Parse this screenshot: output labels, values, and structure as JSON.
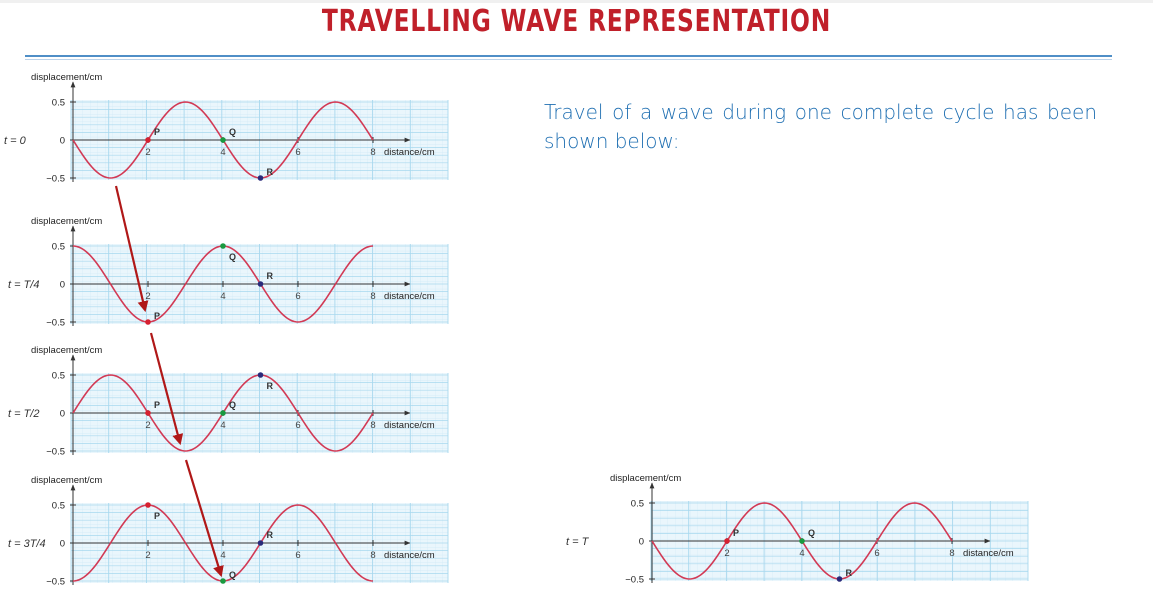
{
  "slide": {
    "title": "TRAVELLING WAVE REPRESENTATION",
    "description": "Travel of a wave during one complete cycle has been shown below:"
  },
  "colors": {
    "title": "#c0202a",
    "text": "#1f6fb2",
    "curve": "#d23a55",
    "grid": "#a8d8ee",
    "arrow": "#b01818",
    "point_P": "#d62030",
    "point_Q": "#1a9a40",
    "point_R": "#2a2a7a"
  },
  "chart_data": [
    {
      "type": "line",
      "time_label": "t = 0",
      "ylabel": "displacement/cm",
      "xlabel": "distance/cm",
      "xlim": [
        0,
        8
      ],
      "ylim": [
        -0.5,
        0.5
      ],
      "x_ticks": [
        2,
        4,
        6,
        8
      ],
      "y_ticks": [
        0.5,
        0,
        -0.5
      ],
      "y_tick_labels": [
        "0.5",
        "0",
        "−0.5"
      ],
      "wave": {
        "amplitude": 0.5,
        "wavelength": 4,
        "phase_cycles": 0
      },
      "points": [
        {
          "label": "P",
          "x": 2,
          "y": 0,
          "color": "#d62030"
        },
        {
          "label": "Q",
          "x": 4,
          "y": 0,
          "color": "#1a9a40"
        },
        {
          "label": "R",
          "x": 5,
          "y": -0.5,
          "color": "#2a2a7a"
        }
      ]
    },
    {
      "type": "line",
      "time_label": "t = T/4",
      "ylabel": "displacement/cm",
      "xlabel": "distance/cm",
      "xlim": [
        0,
        8
      ],
      "ylim": [
        -0.5,
        0.5
      ],
      "x_ticks": [
        2,
        4,
        6,
        8
      ],
      "y_ticks": [
        0.5,
        0,
        -0.5
      ],
      "y_tick_labels": [
        "0.5",
        "0",
        "−0.5"
      ],
      "wave": {
        "amplitude": 0.5,
        "wavelength": 4,
        "phase_cycles": 0.25
      },
      "points": [
        {
          "label": "P",
          "x": 2,
          "y": -0.5,
          "color": "#d62030"
        },
        {
          "label": "Q",
          "x": 4,
          "y": 0.5,
          "color": "#1a9a40"
        },
        {
          "label": "R",
          "x": 5,
          "y": 0,
          "color": "#2a2a7a"
        }
      ]
    },
    {
      "type": "line",
      "time_label": "t = T/2",
      "ylabel": "displacement/cm",
      "xlabel": "distance/cm",
      "xlim": [
        0,
        8
      ],
      "ylim": [
        -0.5,
        0.5
      ],
      "x_ticks": [
        2,
        4,
        6,
        8
      ],
      "y_ticks": [
        0.5,
        0,
        -0.5
      ],
      "y_tick_labels": [
        "0.5",
        "0",
        "−0.5"
      ],
      "wave": {
        "amplitude": 0.5,
        "wavelength": 4,
        "phase_cycles": 0.5
      },
      "points": [
        {
          "label": "P",
          "x": 2,
          "y": 0,
          "color": "#d62030"
        },
        {
          "label": "Q",
          "x": 4,
          "y": 0,
          "color": "#1a9a40"
        },
        {
          "label": "R",
          "x": 5,
          "y": 0.5,
          "color": "#2a2a7a"
        }
      ]
    },
    {
      "type": "line",
      "time_label": "t = 3T/4",
      "ylabel": "displacement/cm",
      "xlabel": "distance/cm",
      "xlim": [
        0,
        8
      ],
      "ylim": [
        -0.5,
        0.5
      ],
      "x_ticks": [
        2,
        4,
        6,
        8
      ],
      "y_ticks": [
        0.5,
        0,
        -0.5
      ],
      "y_tick_labels": [
        "0.5",
        "0",
        "−0.5"
      ],
      "wave": {
        "amplitude": 0.5,
        "wavelength": 4,
        "phase_cycles": 0.75
      },
      "points": [
        {
          "label": "P",
          "x": 2,
          "y": 0.5,
          "color": "#d62030"
        },
        {
          "label": "Q",
          "x": 4,
          "y": -0.5,
          "color": "#1a9a40"
        },
        {
          "label": "R",
          "x": 5,
          "y": 0,
          "color": "#2a2a7a"
        }
      ]
    },
    {
      "type": "line",
      "time_label": "t = T",
      "ylabel": "displacement/cm",
      "xlabel": "distance/cm",
      "xlim": [
        0,
        8
      ],
      "ylim": [
        -0.5,
        0.5
      ],
      "x_ticks": [
        2,
        4,
        6,
        8
      ],
      "y_ticks": [
        0.5,
        0,
        -0.5
      ],
      "y_tick_labels": [
        "0.5",
        "0",
        "−0.5"
      ],
      "wave": {
        "amplitude": 0.5,
        "wavelength": 4,
        "phase_cycles": 0
      },
      "points": [
        {
          "label": "P",
          "x": 2,
          "y": 0,
          "color": "#d62030"
        },
        {
          "label": "Q",
          "x": 4,
          "y": 0,
          "color": "#1a9a40"
        },
        {
          "label": "R",
          "x": 5,
          "y": -0.5,
          "color": "#2a2a7a"
        }
      ]
    }
  ]
}
